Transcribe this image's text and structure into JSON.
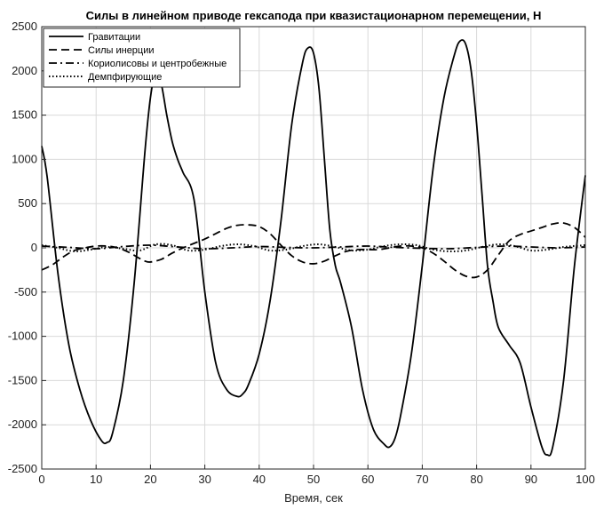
{
  "chart_data": {
    "type": "line",
    "title": "Силы в линейном приводе гексапода при квазистационарном перемещении, Н",
    "xlabel": "Время, сек",
    "ylabel": "",
    "xlim": [
      0,
      100
    ],
    "ylim": [
      -2500,
      2500
    ],
    "xticks": [
      "0",
      "10",
      "20",
      "30",
      "40",
      "50",
      "60",
      "70",
      "80",
      "90",
      "100"
    ],
    "yticks": [
      "-2500",
      "-2000",
      "-1500",
      "-1000",
      "-500",
      "0",
      "500",
      "1000",
      "1500",
      "2000",
      "2500"
    ],
    "grid": true,
    "legend_position": "top-left",
    "series": [
      {
        "name": "Гравитации",
        "style": "solid",
        "x": [
          0,
          1,
          3,
          5,
          7,
          9,
          11,
          12,
          13,
          15,
          17,
          19,
          20,
          21,
          22,
          23,
          24,
          25,
          26,
          28,
          30,
          32,
          34,
          36,
          37,
          38,
          40,
          42,
          44,
          46,
          48,
          49,
          50,
          51,
          52,
          53,
          54,
          55,
          57,
          59,
          61,
          63,
          64,
          65,
          66,
          68,
          70,
          72,
          74,
          76,
          77,
          78,
          79,
          80,
          81,
          82,
          83,
          84,
          86,
          88,
          90,
          92,
          93,
          94,
          96,
          98,
          100
        ],
        "y": [
          1150,
          800,
          -300,
          -1100,
          -1600,
          -1950,
          -2180,
          -2200,
          -2100,
          -1500,
          -400,
          1100,
          1700,
          2000,
          1850,
          1500,
          1200,
          1000,
          850,
          550,
          -500,
          -1300,
          -1600,
          -1680,
          -1650,
          -1550,
          -1200,
          -600,
          300,
          1400,
          2100,
          2260,
          2200,
          1800,
          1000,
          200,
          -200,
          -400,
          -900,
          -1600,
          -2050,
          -2220,
          -2250,
          -2150,
          -1900,
          -1200,
          -200,
          900,
          1700,
          2200,
          2340,
          2300,
          2000,
          1400,
          600,
          -200,
          -600,
          -900,
          -1100,
          -1300,
          -1800,
          -2250,
          -2340,
          -2250,
          -1500,
          -200,
          820
        ]
      },
      {
        "name": "Силы инерции",
        "style": "dashed",
        "x": [
          0,
          2,
          4,
          6,
          8,
          10,
          12,
          14,
          16,
          18,
          19,
          20,
          22,
          24,
          26,
          28,
          30,
          32,
          34,
          36,
          38,
          40,
          42,
          44,
          46,
          48,
          50,
          52,
          54,
          56,
          58,
          60,
          62,
          64,
          66,
          68,
          70,
          72,
          74,
          76,
          78,
          80,
          82,
          84,
          86,
          88,
          90,
          92,
          94,
          96,
          98,
          100
        ],
        "y": [
          -250,
          -190,
          -100,
          -30,
          0,
          20,
          20,
          0,
          -50,
          -120,
          -150,
          -160,
          -130,
          -60,
          0,
          50,
          100,
          160,
          220,
          255,
          260,
          240,
          160,
          30,
          -90,
          -160,
          -180,
          -150,
          -90,
          -40,
          -20,
          -20,
          -20,
          0,
          20,
          20,
          0,
          -60,
          -150,
          -250,
          -320,
          -330,
          -250,
          -80,
          80,
          150,
          190,
          230,
          270,
          280,
          230,
          120
        ]
      },
      {
        "name": "Кориолисовы и центробежные",
        "style": "dashdot",
        "x": [
          0,
          5,
          10,
          15,
          20,
          25,
          30,
          35,
          40,
          45,
          50,
          55,
          60,
          65,
          70,
          75,
          80,
          85,
          90,
          95,
          100
        ],
        "y": [
          20,
          5,
          -10,
          15,
          30,
          10,
          -10,
          0,
          15,
          5,
          0,
          10,
          20,
          5,
          -5,
          -10,
          5,
          20,
          10,
          0,
          10
        ]
      },
      {
        "name": "Демпфирующие",
        "style": "dotted",
        "x": [
          0,
          3,
          6,
          9,
          12,
          15,
          18,
          21,
          24,
          27,
          30,
          33,
          36,
          39,
          42,
          45,
          48,
          51,
          54,
          57,
          60,
          63,
          66,
          69,
          72,
          75,
          78,
          81,
          84,
          87,
          90,
          93,
          96,
          100
        ],
        "y": [
          30,
          0,
          -40,
          -20,
          10,
          -10,
          -30,
          40,
          30,
          -30,
          -20,
          20,
          40,
          20,
          -30,
          -20,
          20,
          40,
          10,
          -30,
          -20,
          20,
          40,
          30,
          -20,
          -40,
          -30,
          10,
          40,
          20,
          -30,
          -20,
          10,
          30
        ]
      }
    ]
  }
}
